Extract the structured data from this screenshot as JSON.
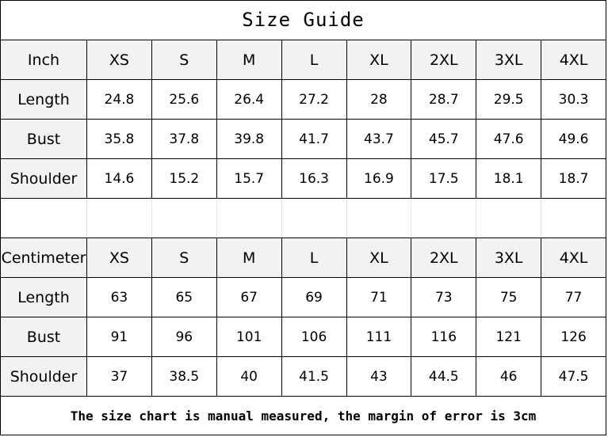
{
  "title": "Size Guide",
  "sizes": [
    "XS",
    "S",
    "M",
    "L",
    "XL",
    "2XL",
    "3XL",
    "4XL"
  ],
  "inch": {
    "unit_label": "Inch",
    "rows": [
      {
        "label": "Length",
        "values": [
          "24.8",
          "25.6",
          "26.4",
          "27.2",
          "28",
          "28.7",
          "29.5",
          "30.3"
        ]
      },
      {
        "label": "Bust",
        "values": [
          "35.8",
          "37.8",
          "39.8",
          "41.7",
          "43.7",
          "45.7",
          "47.6",
          "49.6"
        ]
      },
      {
        "label": "Shoulder",
        "values": [
          "14.6",
          "15.2",
          "15.7",
          "16.3",
          "16.9",
          "17.5",
          "18.1",
          "18.7"
        ]
      }
    ]
  },
  "cm": {
    "unit_label": "Centimeter",
    "rows": [
      {
        "label": "Length",
        "values": [
          "63",
          "65",
          "67",
          "69",
          "71",
          "73",
          "75",
          "77"
        ]
      },
      {
        "label": "Bust",
        "values": [
          "91",
          "96",
          "101",
          "106",
          "111",
          "116",
          "121",
          "126"
        ]
      },
      {
        "label": "Shoulder",
        "values": [
          "37",
          "38.5",
          "40",
          "41.5",
          "43",
          "44.5",
          "46",
          "47.5"
        ]
      }
    ]
  },
  "footer": "The size chart is manual measured, the margin of error is 3cm",
  "colors": {
    "header_bg": "#f2f2f2",
    "border": "#000000"
  }
}
